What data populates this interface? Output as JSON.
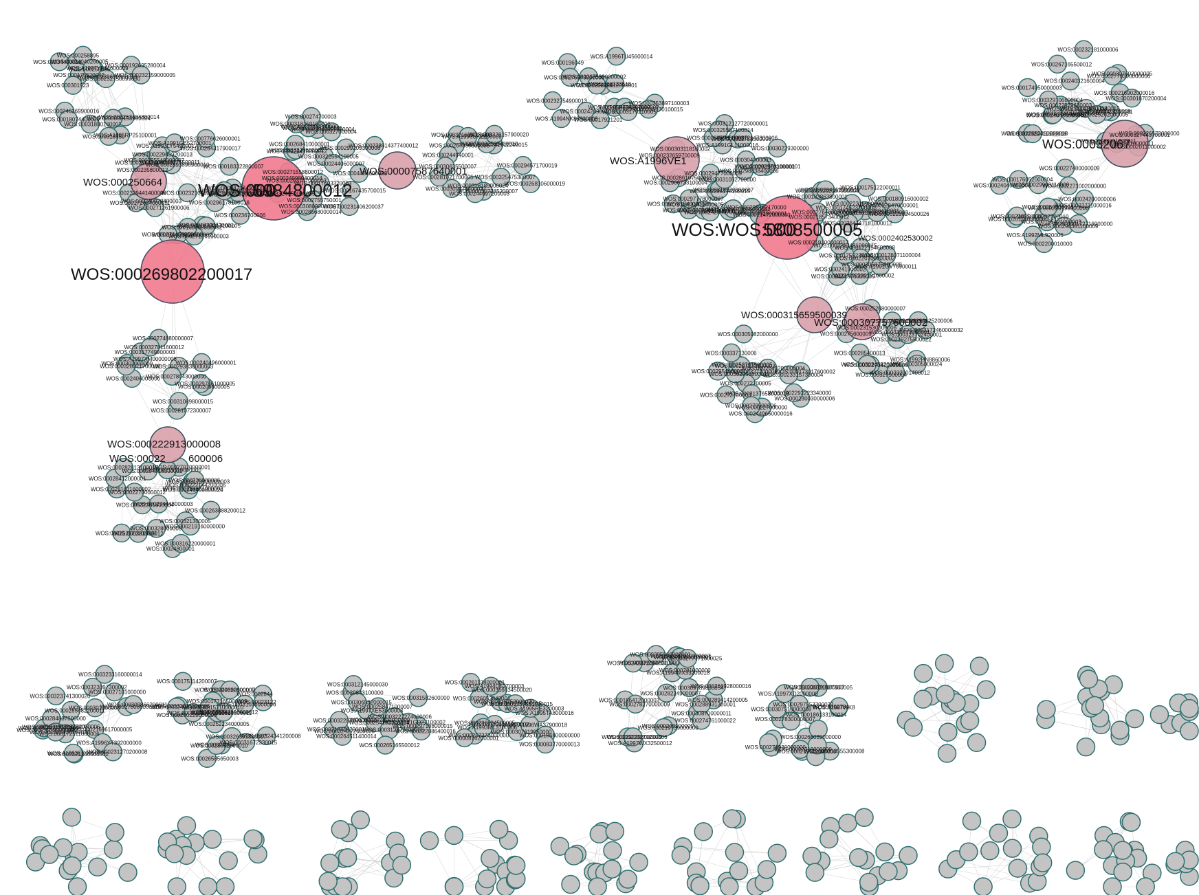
{
  "colors": {
    "node_fill": "#c4c4c4",
    "node_stroke": "#2f6f6f",
    "hub_fill": "#f07a8e",
    "hub_mid_fill": "#d9a0ab",
    "edge": "#c8c8c8"
  },
  "hub_labels": [
    "WOS:000269802200017",
    "WOS:000250664",
    "WOS:000",
    "5984800012",
    "WOS:00007587640001",
    "WOS:A1996VE1",
    "WOS:",
    "WOS:000",
    "5808500005",
    "WOS:00032067",
    "WOS:000315659500039",
    "WOS:000307757600002",
    "WOS:000222913000008",
    "WOS:00022",
    "600006",
    "WOS:0002402530002"
  ],
  "node_labels": [
    "WOS:000175520042",
    "WOS:00234400016",
    "WOS:00024040260005",
    "WOS:A1995RP25100001",
    "WOS:000258895",
    "WOS:000258895",
    "WOS:000239699800016",
    "WOS:000301923",
    "WOS:000318550",
    "WOS:000192695280004",
    "WOS:000257494800014",
    "WOS:A1997YF14600009",
    "WOS:00031880160001",
    "WOS:000232159000005",
    "WOS:000246369900016",
    "WOS:000232750099000",
    "WOS:0003000158900004",
    "WOS:00018074400009",
    "WOS:000225540000007",
    "WOS:000286200001",
    "WOS:000240928400003",
    "WOS:0002893896900010",
    "WOS:0002329441400006",
    "WOS:00018330630001",
    "WOS:000183322800007",
    "WOS:000314988900018",
    "WOS:000240275500011",
    "WOS:000284317900017",
    "WOS:0003238285000020",
    "WOS:0002879749000013",
    "WOS:000187217100005",
    "WOS:A1993LY54900017",
    "WOS:000235800012",
    "WOS:000236700006",
    "WOS:000296178100016",
    "WOS:000172654000011",
    "WOS:000271458850001",
    "WOS:000271261900003",
    "WOS:000271261900006",
    "WOS:000172689100016",
    "WOS:A1991GE52700001",
    "WOS:000776626000001",
    "WOS:000296174000009",
    "WOS:00023210400027",
    "WOS:000169868500002",
    "WOS:000229639200013",
    "WOS:0002755750001",
    "WOS:0003049851800004",
    "WOS:00022997200000",
    "WOS:00017603320003",
    "WOS:000322554100005",
    "WOS:000167435700015",
    "WOS:000271558800012",
    "WOS:000229281200011",
    "WOS:000322410000012",
    "WOS:000249989400014",
    "WOS:0003226600001",
    "WOS:000238614377400012",
    "WOS:000268410000001",
    "WOS:000299209300008",
    "WOS:0004484600008",
    "WOS:0003324850000005",
    "WOS:00024406000007",
    "WOS:000263747000003",
    "WOS:000231406200037",
    "WOS:000285680000014",
    "WOS:000274700003",
    "WOS:000327000004",
    "WOS:000318159100021",
    "WOS:000308090000007",
    "WOS:000342011200015",
    "WOS:000264330000005",
    "WOS:000312189000024",
    "WOS:000244940001",
    "WOS:00032569400010",
    "WOS:000268106000019",
    "WOS:000326157900020",
    "WOS:000307285200007",
    "WOS:000321669000003",
    "WOS:000300671600027",
    "WOS:000294571700019",
    "WOS:000281021700005",
    "WOS:00030635500007",
    "WOS:A1996UK2200009",
    "WOS:000244697200003",
    "WOS:000325475300007",
    "WOS:000196049",
    "WOS:A1996TU45600014",
    "WOS:00024289000008",
    "WOS:000248812000001",
    "WOS:000253897100003",
    "WOS:A1994NK88600008",
    "WOS:0002675390000002",
    "WOS:A1995RF96900007",
    "WOS:000276543000000",
    "WOS:000258704",
    "WOS:00017921201",
    "WOS:000278187600002",
    "WOS:0003179210005",
    "WOS:000323519",
    "WOS:000232754900013",
    "WOS:000286170100015",
    "WOS:000286170100015",
    "WOS:0002951000011",
    "WOS:000286107500012",
    "WOS:0002906733100004",
    "WOS:00029477000009",
    "WOS:000232659700009",
    "WOS:000312127720000001",
    "WOS:00031411400005",
    "WOS:000298402170000",
    "WOS:00026497000006",
    "WOS:000311758500008",
    "WOS:0002781540000007",
    "WOS:000297810000001",
    "WOS:000297778000007",
    "WOS:000312147300006",
    "WOS:00030229300000",
    "WOS:000298838400006",
    "WOS:000303118100002",
    "WOS:000242849700008",
    "WOS:000308000001",
    "WOS:000318220000007",
    "WOS:00021472000000",
    "WOS:00031052700000",
    "WOS:A1991GL11000016",
    "WOS:000304000003",
    "WOS:000281963100001",
    "WOS:A1991EX12200004",
    "WOS:0003070655000011",
    "WOS:000284598600007",
    "WOS:000325567100014",
    "WOS:000291930410001",
    "WOS:000305875800009",
    "WOS:000175122000011",
    "WOS:000183863800001",
    "WOS:A1991GV76900011",
    "WOS:000176071100004",
    "WOS:000325610120002",
    "WOS:000218573400012",
    "WOS:000228470000001",
    "WOS:000230181600002",
    "WOS:0002451870000005",
    "WOS:0003202187000006",
    "WOS:000264747181000012",
    "WOS:000180916000002",
    "WOS:000223159000002",
    "WOS:000172154600008",
    "WOS:000220700000002",
    "WOS:00023245400003",
    "WOS:000174523700002",
    "WOS:000241900002",
    "WOS:0002764660000013",
    "WOS:000219100000017",
    "WOS:000175523000011",
    "WOS:000223824500026",
    "WOS:0002263481000015",
    "WOS:000284153900019",
    "WOS:000327500004",
    "WOS:000231530000006",
    "WOS:A1992HN8860006",
    "WOS:000285400013",
    "WOS:000232001400012",
    "WOS:000219275500022",
    "WOS:000252680000007",
    "WOS:000305000024",
    "WOS:0003172460000032",
    "WOS:000302001300004",
    "WOS:0002270470000006",
    "WOS:000302459200000",
    "WOS:000330473000001",
    "WOS:000323702400001",
    "WOS:000296125200006",
    "WOS:000275600009",
    "WOS:000305082000000",
    "WOS:0002649200000004",
    "WOS:000173017600002",
    "WOS:000327200006",
    "WOS:000252761500005",
    "WOS:000230030000006",
    "WOS:0002449650000016",
    "WOS:0002292223340000",
    "WOS:000272700005",
    "WOS:000272700003",
    "WOS:000233157300004",
    "WOS:000302958800015",
    "WOS:0002954660001",
    "WOS:000297223100003",
    "WOS:000227000000",
    "WOS:000337130006",
    "WOS:0003137658000018",
    "WOS:000279500006",
    "WOS:000174950000003",
    "WOS:000267165500012",
    "WOS:000232181000006",
    "WOS:000232247500003",
    "WOS:00022529630003",
    "WOS:00023200001",
    "WOS:000240445000005",
    "WOS:000288611140015",
    "WOS:000240200008",
    "WOS:000327443700001",
    "WOS:00022662350000018",
    "WOS:000307602000005",
    "WOS:000240321600004",
    "WOS:000226572000000",
    "WOS:00022611700011",
    "WOS:0002011000002",
    "WOS:000216902000016",
    "WOS:00025262000005",
    "WOS:000227480000009",
    "WOS:000262785600007",
    "WOS:000329411600018",
    "WOS:0002770390000006",
    "WOS:000301870200004",
    "WOS:000329106600004",
    "WOS:0003045410000011",
    "WOS:000300416600007",
    "WOS:000230198000008",
    "WOS:000185421000003",
    "WOS:000290381100009",
    "WOS:000201100000000",
    "WOS:00029908114000",
    "WOS:000176052000004",
    "WOS:000297700010",
    "WOS:A1992ML920006",
    "WOS:000172716900000",
    "WOS:0002200010000",
    "WOS:000254000001",
    "WOS:0002271002000000",
    "WOS:000216810028",
    "WOS:00022711000016",
    "WOS:00024200000006",
    "WOS:00024040600006",
    "WOS:000240496000001",
    "WOS:000209600005",
    "WOS:000293830000003",
    "WOS:000303000009",
    "WOS:A1997XM00000008",
    "WOS:0002406000000",
    "WOS:000278043000000",
    "WOS:000281072300007",
    "WOS:000310898000015",
    "WOS:000328071700000",
    "WOS:000317749900003",
    "WOS:000274880000007",
    "WOS:000297861000005",
    "WOS:000327811600012",
    "WOS:00032281800004",
    "WOS:000281631000002",
    "WOS:00024800001",
    "WOS:00022700000012",
    "WOS:000252820000008",
    "WOS:000281611600002",
    "WOS:000281900012",
    "WOS:00027070000001",
    "WOS:000219110000000",
    "WOS:00028412000001",
    "WOS:000328000005",
    "WOS:000321300005",
    "WOS:0003173300000003",
    "WOS:000274443000003",
    "WOS:000240400800020",
    "WOS:000263888200012",
    "WOS:000282813100010",
    "WOS:000222144200006",
    "WOS:000219160000000",
    "WOS:000236000006",
    "WOS:000294818300002",
    "WOS:000316220000001",
    "WOS:000321200000002",
    "WOS:0002071918100007",
    "WOS:00027101000000",
    "WOS:000323097300002",
    "WOS:0002169617000005",
    "WOS:000270799000001",
    "WOS:A1993EC000000",
    "WOS:000301300008",
    "WOS:000323741300020",
    "WOS:0003233160000014",
    "WOS:000285682200011",
    "WOS:000319750000006",
    "WOS:000324557500003",
    "WOS:000178086000020",
    "WOS:000172511000006",
    "WOS:000284837600000",
    "WOS:000309866200011",
    "WOS:000305920700020",
    "WOS:A1996YT392000000",
    "WOS:000231270200008",
    "WOS:0002844",
    "WOS:0002929",
    "WOS:00024956",
    "WOS:00023122",
    "WOS:000229690800007",
    "WOS:000252234000005",
    "WOS:00032031500005",
    "WOS:00026585650003",
    "WOS:000326393800007",
    "WOS:000280228000006",
    "WOS:000177165000009",
    "WOS:00031672330015",
    "WOS:00032402100010",
    "WOS:000324341200008",
    "WOS:000322000000",
    "WOS:000313669500011",
    "WOS:0003003840000001",
    "WOS:000247896000012",
    "WOS:000175114200007",
    "WOS:00028652000010",
    "WOS:000315710000010",
    "WOS:00031036900006",
    "WOS:000297188000015",
    "WOS:000292800000009",
    "WOS:A1997XE53000003",
    "WOS:00029843100000",
    "WOS:000322886400016",
    "WOS:A1991GD27100002",
    "WOS:000254191300004",
    "WOS:00031582600000",
    "WOS:000312145000030",
    "WOS:000324272600006",
    "WOS:000310410200011",
    "WOS:0003227274000006",
    "WOS:0003228700000030",
    "WOS:000312872600006",
    "WOS:000264511400014",
    "WOS:000265165500012",
    "WOS:000306532000015",
    "WOS:000258471000007",
    "WOS:000286834500005",
    "WOS:000315752900020",
    "WOS:000316634500020",
    "WOS:00026053840001",
    "WOS:000186600000000",
    "WOS:000257373000000",
    "WOS:000309099000002",
    "WOS:A1993ML3700006",
    "WOS:000261134000001",
    "WOS:000307619950000",
    "WOS:A1994Q52700003",
    "WOS:A1995TA8000016",
    "WOS:000083770000013",
    "WOS:A1996WA37900018",
    "WOS:A1995RE3200003",
    "WOS:000008762000001",
    "WOS:000267215400005",
    "WOS:0000757531000015",
    "WOS:000262327000000",
    "WOS:000186412000003",
    "WOS:A1997WX32500012",
    "WOS:000287910000007",
    "WOS:A1994MX33200018",
    "WOS:00030844100005",
    "WOS:000281000000",
    "WOS:000243100005",
    "WOS:000309789800054",
    "WOS:000289414200005",
    "WOS:000282249000007",
    "WOS:000242872000000",
    "WOS:000292298000009",
    "WOS:000308700000011",
    "WOS:000266928000016",
    "WOS:000220270200006",
    "WOS:000278270000009",
    "WOS:000288931300001",
    "WOS:000274761000022",
    "WOS:000219739000000",
    "WOS:000305860000001",
    "WOS:000277771600025",
    "WOS:000278300000007",
    "WOS:000276930000000",
    "WOS:000219110000000",
    "WOS:000307510000008",
    "WOS:000321827300005",
    "WOS:000186133100014",
    "WOS:000230793900007",
    "WOS:000297553300037",
    "WOS:A1997XD2000000",
    "WOS:000266069000000",
    "WOS:000218555300008",
    "WOS:00022719000000",
    "WOS:A1997WK8",
    "WOS:0002784"
  ]
}
